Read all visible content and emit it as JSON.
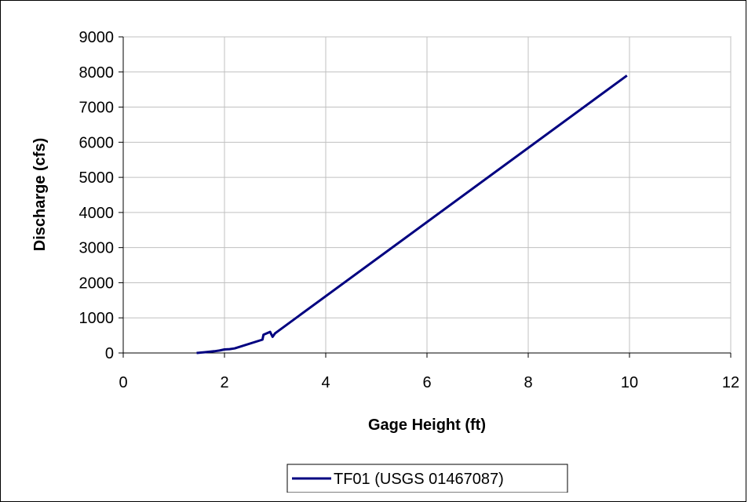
{
  "chart_data": {
    "type": "line",
    "title": "",
    "xlabel": "Gage Height (ft)",
    "ylabel": "Discharge (cfs)",
    "xlim": [
      0,
      12
    ],
    "ylim": [
      0,
      9000
    ],
    "x_ticks": [
      0,
      2,
      4,
      6,
      8,
      10,
      12
    ],
    "y_ticks": [
      0,
      1000,
      2000,
      3000,
      4000,
      5000,
      6000,
      7000,
      8000,
      9000
    ],
    "grid": true,
    "legend_position": "bottom",
    "series": [
      {
        "name": "TF01 (USGS 01467087)",
        "color": "#000080",
        "x": [
          1.45,
          1.6,
          1.8,
          1.9,
          2.0,
          2.1,
          2.2,
          2.75,
          2.77,
          2.9,
          2.95,
          3.0,
          9.95
        ],
        "y": [
          0,
          20,
          50,
          70,
          100,
          110,
          130,
          380,
          520,
          600,
          460,
          560,
          7900
        ]
      }
    ]
  }
}
